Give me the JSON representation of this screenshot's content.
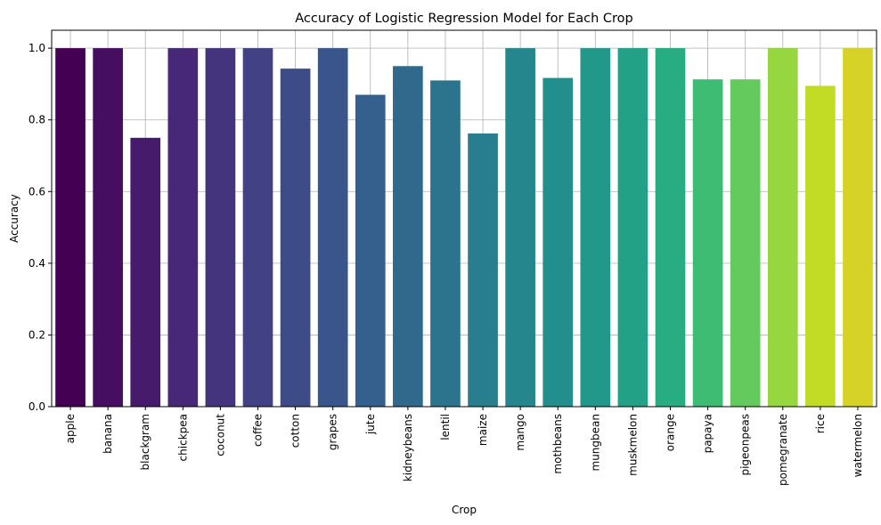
{
  "chart_data": {
    "type": "bar",
    "title": "Accuracy of Logistic Regression Model for Each Crop",
    "xlabel": "Crop",
    "ylabel": "Accuracy",
    "categories": [
      "apple",
      "banana",
      "blackgram",
      "chickpea",
      "coconut",
      "coffee",
      "cotton",
      "grapes",
      "jute",
      "kidneybeans",
      "lentil",
      "maize",
      "mango",
      "mothbeans",
      "mungbean",
      "muskmelon",
      "orange",
      "papaya",
      "pigeonpeas",
      "pomegranate",
      "rice",
      "watermelon"
    ],
    "values": [
      1.0,
      1.0,
      0.75,
      1.0,
      1.0,
      1.0,
      0.943,
      1.0,
      0.87,
      0.95,
      0.91,
      0.762,
      1.0,
      0.917,
      1.0,
      1.0,
      1.0,
      0.913,
      0.913,
      1.0,
      0.895,
      1.0
    ],
    "colors": [
      "#440154",
      "#481f70",
      "#443983",
      "#3b528b",
      "#33638d",
      "#2c728e",
      "#26828e",
      "#21918c",
      "#1fa088",
      "#28ae80",
      "#3fbc73",
      "#5ec962",
      "#84d44b",
      "#addc30",
      "#d8e219",
      "#fde725",
      "#fde725",
      "#fde725",
      "#fde725",
      "#fde725",
      "#fde725",
      "#fde725"
    ],
    "ylim": [
      0,
      1.05
    ],
    "yticks": [
      "0.0",
      "0.2",
      "0.4",
      "0.6",
      "0.8",
      "1.0"
    ],
    "grid": true,
    "legend": false
  }
}
